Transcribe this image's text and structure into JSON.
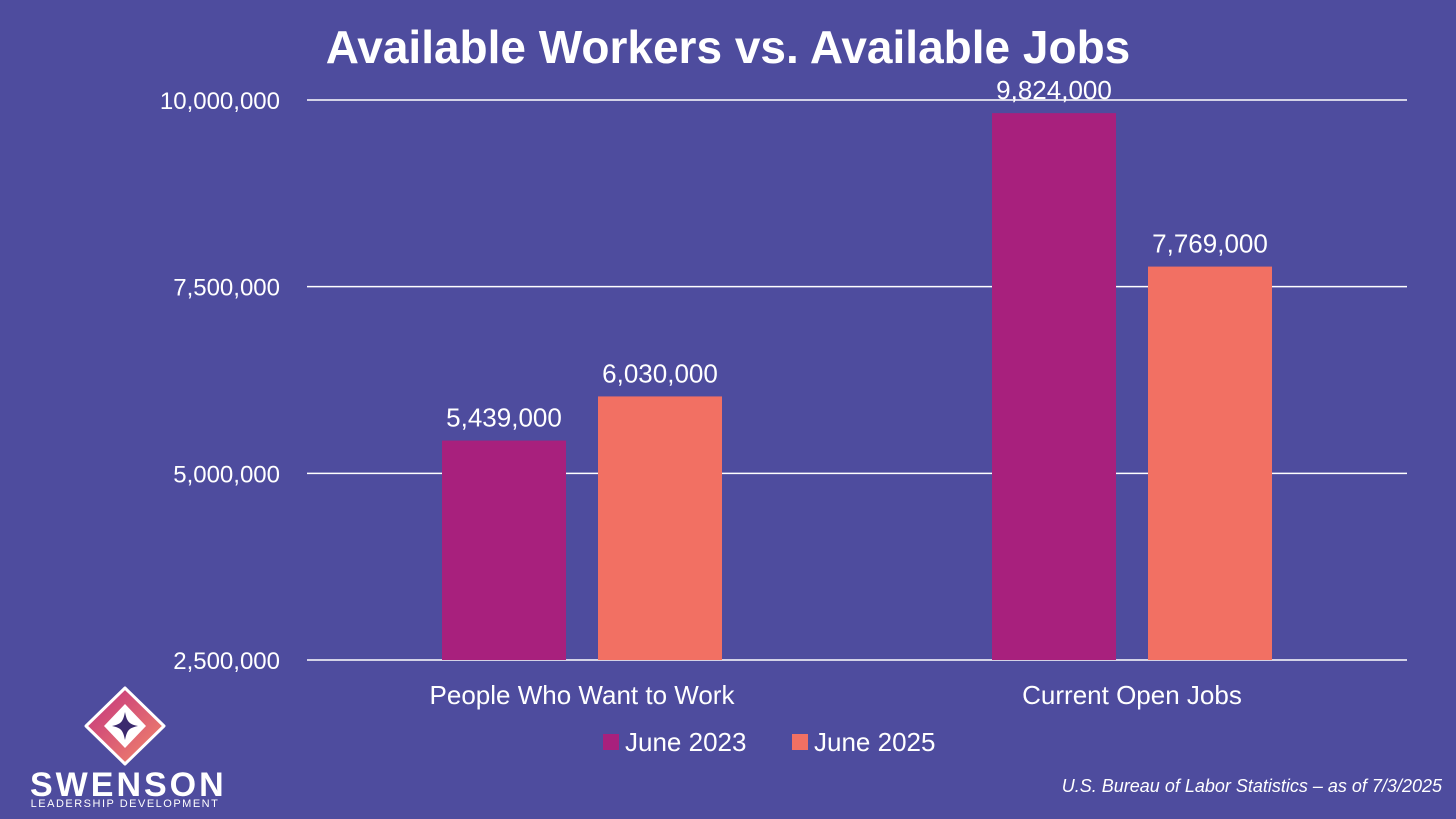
{
  "chart_data": {
    "type": "bar",
    "title": "Available Workers vs. Available Jobs",
    "categories": [
      "People Who Want to Work",
      "Current Open Jobs"
    ],
    "series": [
      {
        "name": "June 2023",
        "color": "#a8207d",
        "values": [
          5439000,
          9824000
        ],
        "labels": [
          "5,439,000",
          "9,824,000"
        ]
      },
      {
        "name": "June 2025",
        "color": "#f27063",
        "values": [
          6030000,
          7769000
        ],
        "labels": [
          "6,030,000",
          "7,769,000"
        ]
      }
    ],
    "ylim": [
      2500000,
      10000000
    ],
    "yticks": [
      2500000,
      5000000,
      7500000,
      10000000
    ],
    "ytick_labels": [
      "2,500,000",
      "5,000,000",
      "7,500,000",
      "10,000,000"
    ],
    "xlabel": "",
    "ylabel": "",
    "grid": true,
    "legend_position": "bottom"
  },
  "brand": {
    "name": "SWENSON",
    "tagline": "LEADERSHIP DEVELOPMENT",
    "logo_icon": "swenson-logo-icon"
  },
  "source": "U.S. Bureau of Labor Statistics – as of 7/3/2025"
}
